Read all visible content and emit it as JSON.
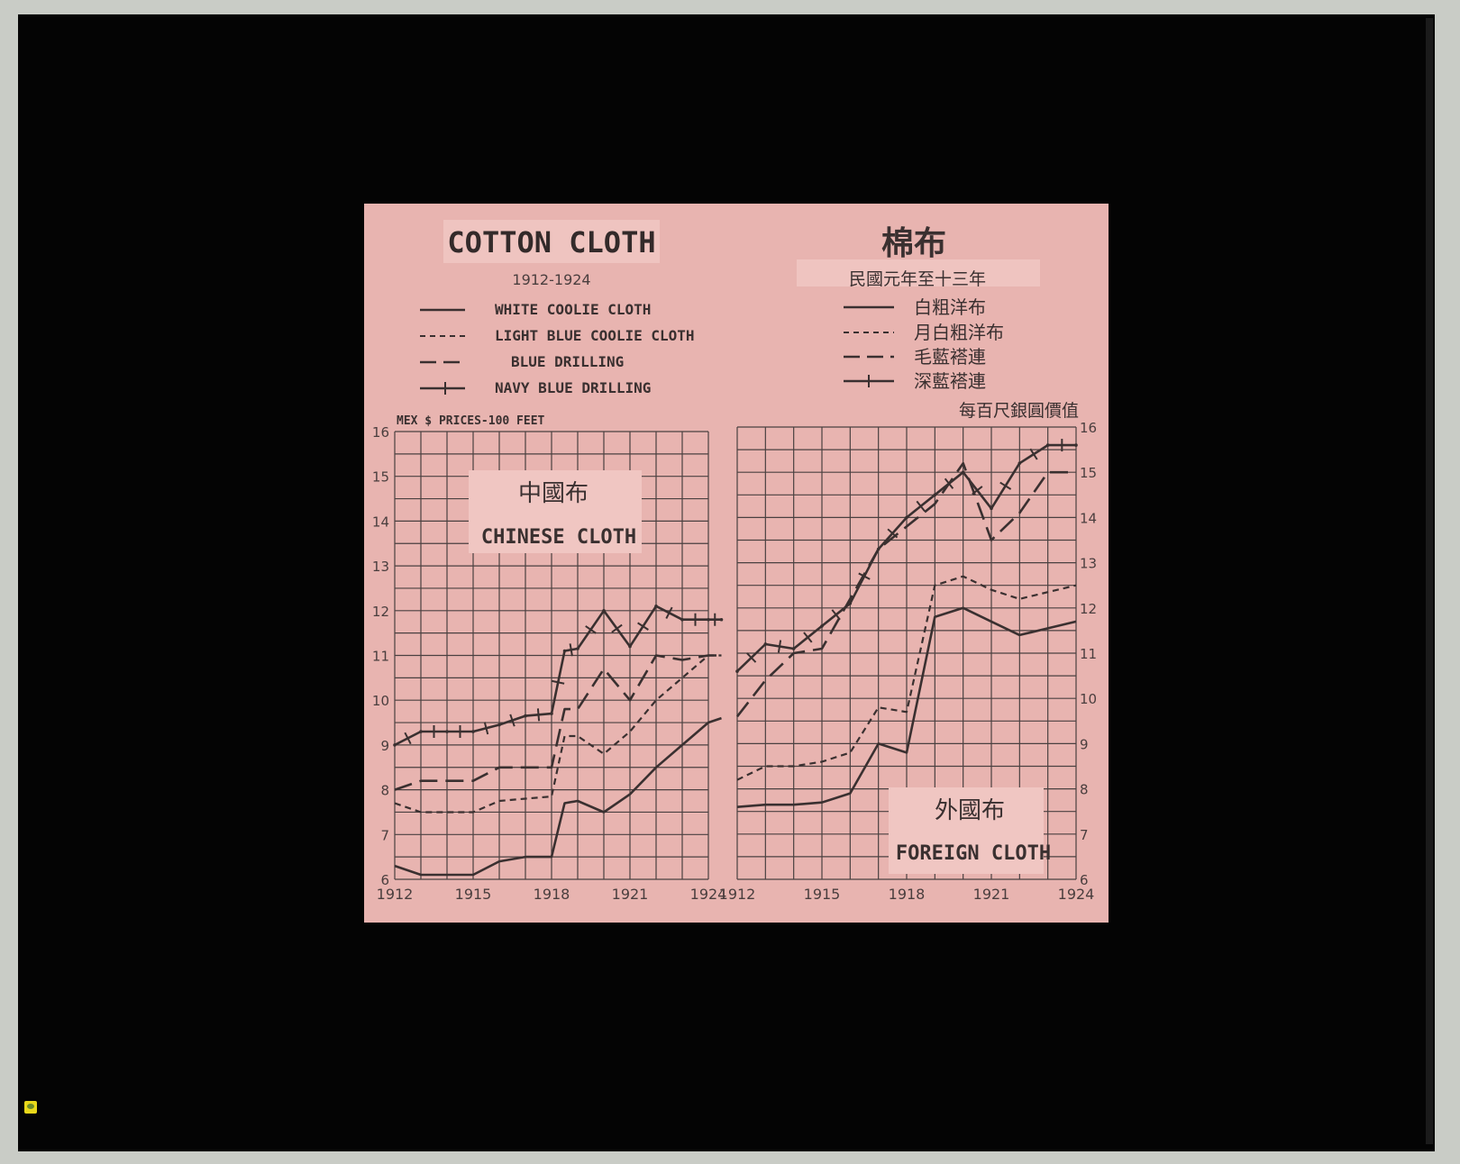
{
  "header": {
    "title_en": "COTTON CLOTH",
    "years_en": "1912-1924",
    "title_zh": "棉布",
    "years_zh": "民國元年至十三年",
    "units_en": "MEX $ PRICES-100 FEET",
    "units_zh": "每百尺銀圓價值"
  },
  "legend": [
    {
      "en": "WHITE COOLIE CLOTH",
      "zh": "白粗洋布",
      "style": "solid"
    },
    {
      "en": "LIGHT BLUE COOLIE CLOTH",
      "zh": "月白粗洋布",
      "style": "short-dash"
    },
    {
      "en": "BLUE DRILLING",
      "zh": "毛藍褡連",
      "style": "long-dash"
    },
    {
      "en": "NAVY BLUE DRILLING",
      "zh": "深藍褡連",
      "style": "tick"
    }
  ],
  "colors": {
    "slide": "#e8b4b0",
    "ink": "#3a3030",
    "grid": "#4a4040",
    "mount": "#040404"
  },
  "icons": [
    "note-icon"
  ],
  "chart_data": [
    {
      "type": "line",
      "title_zh": "中國布",
      "title": "CHINESE CLOTH",
      "ylim": [
        6,
        16
      ],
      "yticks": [
        "6",
        "7",
        "8",
        "9",
        "10",
        "11",
        "12",
        "13",
        "14",
        "15",
        "16"
      ],
      "xlim": [
        1912,
        1924
      ],
      "xticks": [
        "1912",
        "1915",
        "1918",
        "1921",
        "1924"
      ],
      "x": [
        1912,
        1913,
        1914,
        1915,
        1916,
        1917,
        1918,
        1918.5,
        1919,
        1920,
        1921,
        1922,
        1923,
        1924,
        1924.5
      ],
      "series": [
        {
          "name": "WHITE COOLIE CLOTH",
          "values": [
            6.3,
            6.1,
            6.1,
            6.1,
            6.4,
            6.5,
            6.5,
            7.7,
            7.75,
            7.5,
            7.9,
            8.5,
            9.0,
            9.5,
            9.6
          ]
        },
        {
          "name": "LIGHT BLUE COOLIE CLOTH",
          "values": [
            7.7,
            7.5,
            7.5,
            7.5,
            7.75,
            7.8,
            7.85,
            9.2,
            9.2,
            8.8,
            9.3,
            10.0,
            10.5,
            11.0,
            11.0
          ]
        },
        {
          "name": "BLUE DRILLING",
          "values": [
            8.0,
            8.2,
            8.2,
            8.2,
            8.5,
            8.5,
            8.5,
            9.8,
            9.8,
            10.7,
            10.0,
            11.0,
            10.9,
            11.0,
            11.0
          ]
        },
        {
          "name": "NAVY BLUE DRILLING",
          "values": [
            9.0,
            9.3,
            9.3,
            9.3,
            9.45,
            9.65,
            9.7,
            11.1,
            11.15,
            12.0,
            11.2,
            12.1,
            11.8,
            11.8,
            11.8
          ]
        }
      ]
    },
    {
      "type": "line",
      "title_zh": "外國布",
      "title": "FOREIGN CLOTH",
      "ylim": [
        6,
        16
      ],
      "yticks": [
        "6",
        "7",
        "8",
        "9",
        "10",
        "11",
        "12",
        "13",
        "14",
        "15",
        "16"
      ],
      "xlim": [
        1912,
        1924
      ],
      "xticks": [
        "1912",
        "1915",
        "1918",
        "1921",
        "1924"
      ],
      "x": [
        1912,
        1913,
        1914,
        1915,
        1916,
        1917,
        1918,
        1919,
        1920,
        1921,
        1922,
        1923,
        1924
      ],
      "series": [
        {
          "name": "WHITE COOLIE CLOTH",
          "values": [
            7.6,
            7.65,
            7.65,
            7.7,
            7.9,
            9.0,
            8.8,
            11.8,
            12.0,
            11.7,
            11.4,
            11.55,
            11.7
          ]
        },
        {
          "name": "LIGHT BLUE COOLIE CLOTH",
          "values": [
            8.2,
            8.5,
            8.5,
            8.6,
            8.8,
            9.8,
            9.7,
            12.5,
            12.7,
            12.4,
            12.2,
            12.35,
            12.5
          ]
        },
        {
          "name": "BLUE DRILLING",
          "values": [
            9.6,
            10.4,
            11.0,
            11.1,
            12.2,
            13.3,
            13.8,
            14.3,
            15.2,
            13.5,
            14.1,
            15.0,
            15.0
          ]
        },
        {
          "name": "NAVY BLUE DRILLING",
          "values": [
            10.6,
            11.2,
            11.1,
            11.6,
            12.1,
            13.3,
            14.0,
            14.5,
            15.0,
            14.2,
            15.2,
            15.6,
            15.6
          ]
        }
      ]
    }
  ]
}
